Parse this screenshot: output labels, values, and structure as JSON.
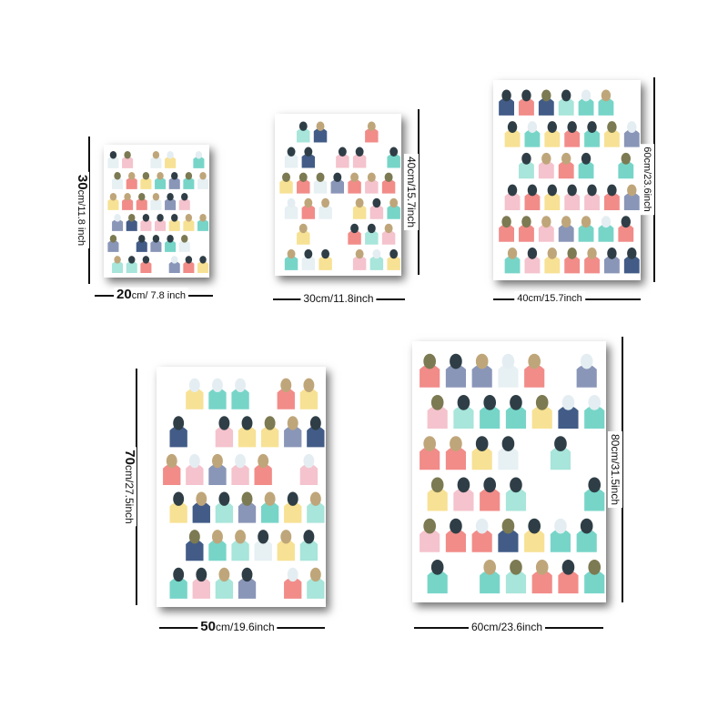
{
  "palette": {
    "dark": "#2f3e46",
    "navy": "#2e4a7a",
    "coral": "#f07f7c",
    "yellow": "#f6de88",
    "teal": "#68d0c2",
    "mint": "#9fe2d6",
    "tan": "#bfa67a",
    "olive": "#7c7a52",
    "pink": "#f3bcc8",
    "pale": "#e4eef2",
    "slate": "#7d8bb0",
    "white": "#ffffff"
  },
  "sizes": [
    {
      "id": "s20x30",
      "width_big": "20",
      "width_small": "cm/ 7.8 inch",
      "height_big": "30",
      "height_small": "cm/11.8 inch"
    },
    {
      "id": "s30x40",
      "width_big": "",
      "width_small": "30cm/11.8inch",
      "height_big": "",
      "height_small": "40cm/15.7inch"
    },
    {
      "id": "s40x60",
      "width_big": "",
      "width_small": "40cm/15.7inch",
      "height_big": "",
      "height_small": "60cm/23.6inch"
    },
    {
      "id": "s50x70",
      "width_big": "50",
      "width_small": "cm/19.6inch",
      "height_big": "70",
      "height_small": "cm/27.5inch"
    },
    {
      "id": "s60x80",
      "width_big": "",
      "width_small": "60cm/23.6inch",
      "height_big": "",
      "height_small": "80cm/31.5inch"
    }
  ]
}
